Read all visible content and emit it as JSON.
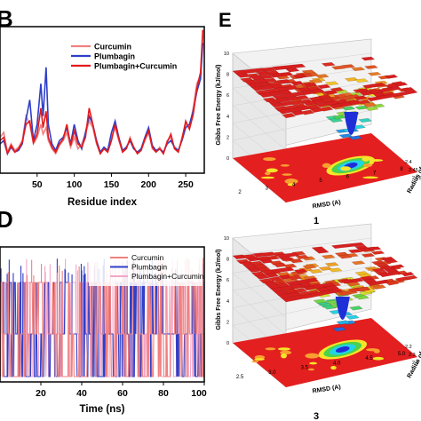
{
  "panels": {
    "b": {
      "letter": "B",
      "chart_data": {
        "type": "line",
        "xlabel": "Residue index",
        "ylabel": "",
        "xlim": [
          0,
          275
        ],
        "ylim": [
          0,
          0.9
        ],
        "xticks": [
          50,
          100,
          150,
          200,
          250
        ],
        "legend_position": "top-right",
        "series": [
          {
            "name": "Curcumin",
            "color": "#f08080",
            "x": [
              0,
              5,
              10,
              15,
              20,
              25,
              30,
              35,
              40,
              45,
              50,
              55,
              58,
              62,
              65,
              70,
              75,
              80,
              85,
              90,
              95,
              100,
              105,
              110,
              115,
              120,
              125,
              130,
              135,
              140,
              145,
              150,
              155,
              160,
              165,
              170,
              175,
              180,
              185,
              190,
              195,
              200,
              205,
              210,
              215,
              220,
              225,
              230,
              235,
              240,
              245,
              250,
              255,
              260,
              265,
              270,
              273
            ],
            "y": [
              0.22,
              0.25,
              0.13,
              0.18,
              0.14,
              0.16,
              0.2,
              0.35,
              0.3,
              0.18,
              0.22,
              0.3,
              0.24,
              0.28,
              0.2,
              0.15,
              0.12,
              0.17,
              0.2,
              0.25,
              0.16,
              0.22,
              0.15,
              0.18,
              0.24,
              0.32,
              0.28,
              0.18,
              0.12,
              0.15,
              0.13,
              0.22,
              0.28,
              0.2,
              0.13,
              0.15,
              0.22,
              0.16,
              0.12,
              0.14,
              0.2,
              0.25,
              0.15,
              0.13,
              0.16,
              0.12,
              0.2,
              0.22,
              0.15,
              0.13,
              0.22,
              0.3,
              0.28,
              0.4,
              0.55,
              0.6,
              0.85
            ]
          },
          {
            "name": "Plumbagin",
            "color": "#2e3fc8",
            "x": [
              0,
              5,
              10,
              15,
              20,
              25,
              30,
              35,
              40,
              45,
              50,
              55,
              58,
              62,
              65,
              70,
              75,
              80,
              85,
              90,
              95,
              100,
              105,
              110,
              115,
              120,
              125,
              130,
              135,
              140,
              145,
              150,
              155,
              160,
              165,
              170,
              175,
              180,
              185,
              190,
              195,
              200,
              205,
              210,
              215,
              220,
              225,
              230,
              235,
              240,
              245,
              250,
              255,
              260,
              265,
              270,
              273
            ],
            "y": [
              0.18,
              0.2,
              0.12,
              0.16,
              0.13,
              0.14,
              0.18,
              0.33,
              0.45,
              0.2,
              0.3,
              0.55,
              0.35,
              0.65,
              0.3,
              0.18,
              0.14,
              0.2,
              0.22,
              0.28,
              0.18,
              0.3,
              0.2,
              0.15,
              0.25,
              0.35,
              0.3,
              0.2,
              0.13,
              0.16,
              0.14,
              0.25,
              0.32,
              0.22,
              0.14,
              0.16,
              0.2,
              0.15,
              0.13,
              0.15,
              0.22,
              0.28,
              0.17,
              0.14,
              0.15,
              0.13,
              0.18,
              0.2,
              0.16,
              0.14,
              0.2,
              0.28,
              0.3,
              0.38,
              0.5,
              0.58,
              0.8
            ]
          },
          {
            "name": "Plumbagin+Curcumin",
            "color": "#e31a1c",
            "x": [
              0,
              5,
              10,
              15,
              20,
              25,
              30,
              35,
              40,
              45,
              50,
              55,
              58,
              62,
              65,
              70,
              75,
              80,
              85,
              90,
              95,
              100,
              105,
              110,
              115,
              120,
              125,
              130,
              135,
              140,
              145,
              150,
              155,
              160,
              165,
              170,
              175,
              180,
              185,
              190,
              195,
              200,
              205,
              210,
              215,
              220,
              225,
              230,
              235,
              240,
              245,
              250,
              255,
              260,
              265,
              270,
              273
            ],
            "y": [
              0.2,
              0.22,
              0.12,
              0.17,
              0.13,
              0.15,
              0.19,
              0.3,
              0.32,
              0.19,
              0.24,
              0.4,
              0.28,
              0.38,
              0.22,
              0.16,
              0.13,
              0.18,
              0.21,
              0.3,
              0.17,
              0.26,
              0.18,
              0.16,
              0.22,
              0.4,
              0.3,
              0.19,
              0.12,
              0.15,
              0.13,
              0.2,
              0.3,
              0.21,
              0.13,
              0.15,
              0.21,
              0.16,
              0.12,
              0.14,
              0.21,
              0.26,
              0.16,
              0.13,
              0.15,
              0.12,
              0.19,
              0.24,
              0.15,
              0.13,
              0.21,
              0.32,
              0.27,
              0.36,
              0.52,
              0.62,
              0.88
            ]
          }
        ]
      }
    },
    "d": {
      "letter": "D",
      "chart_data": {
        "type": "line",
        "xlabel": "Time (ns)",
        "ylabel": "",
        "xlim": [
          0,
          100
        ],
        "xticks": [
          20,
          40,
          60,
          80,
          100
        ],
        "levels": 3,
        "legend_position": "top-right",
        "series": [
          {
            "name": "Curcumin",
            "color": "#f08080"
          },
          {
            "name": "Plumbagin",
            "color": "#2e3fc8"
          },
          {
            "name": "Plumbagin+Curcumin",
            "color": "#f4a6c8"
          }
        ]
      }
    },
    "e": {
      "letter": "E",
      "subplots": [
        {
          "label": "1",
          "chart_data": {
            "type": "surface",
            "zlabel": "Gibbs Free Energy (kJ/mol)",
            "xlabel": "RMSD (A)",
            "ylabel": "Radius of",
            "zticks": [
              "0",
              "2",
              "4",
              "6",
              "8",
              "10"
            ],
            "xticks": [
              "2",
              "3",
              "4",
              "5",
              "6",
              "7",
              "8"
            ],
            "yticks": [
              "2.4",
              "2.45",
              "24.5"
            ]
          }
        },
        {
          "label": "3",
          "chart_data": {
            "type": "surface",
            "zlabel": "Gibbs Free Energy (kJ/mol)",
            "xlabel": "RMSD (A)",
            "ylabel": "Radius of",
            "zticks": [
              "0",
              "2",
              "4",
              "6",
              "8",
              "10"
            ],
            "xticks": [
              "2.5",
              "3.0",
              "3.5",
              "4.0",
              "4.5",
              "5.0"
            ],
            "yticks": [
              "2.2",
              "2.3",
              "2.4"
            ]
          }
        }
      ]
    }
  }
}
